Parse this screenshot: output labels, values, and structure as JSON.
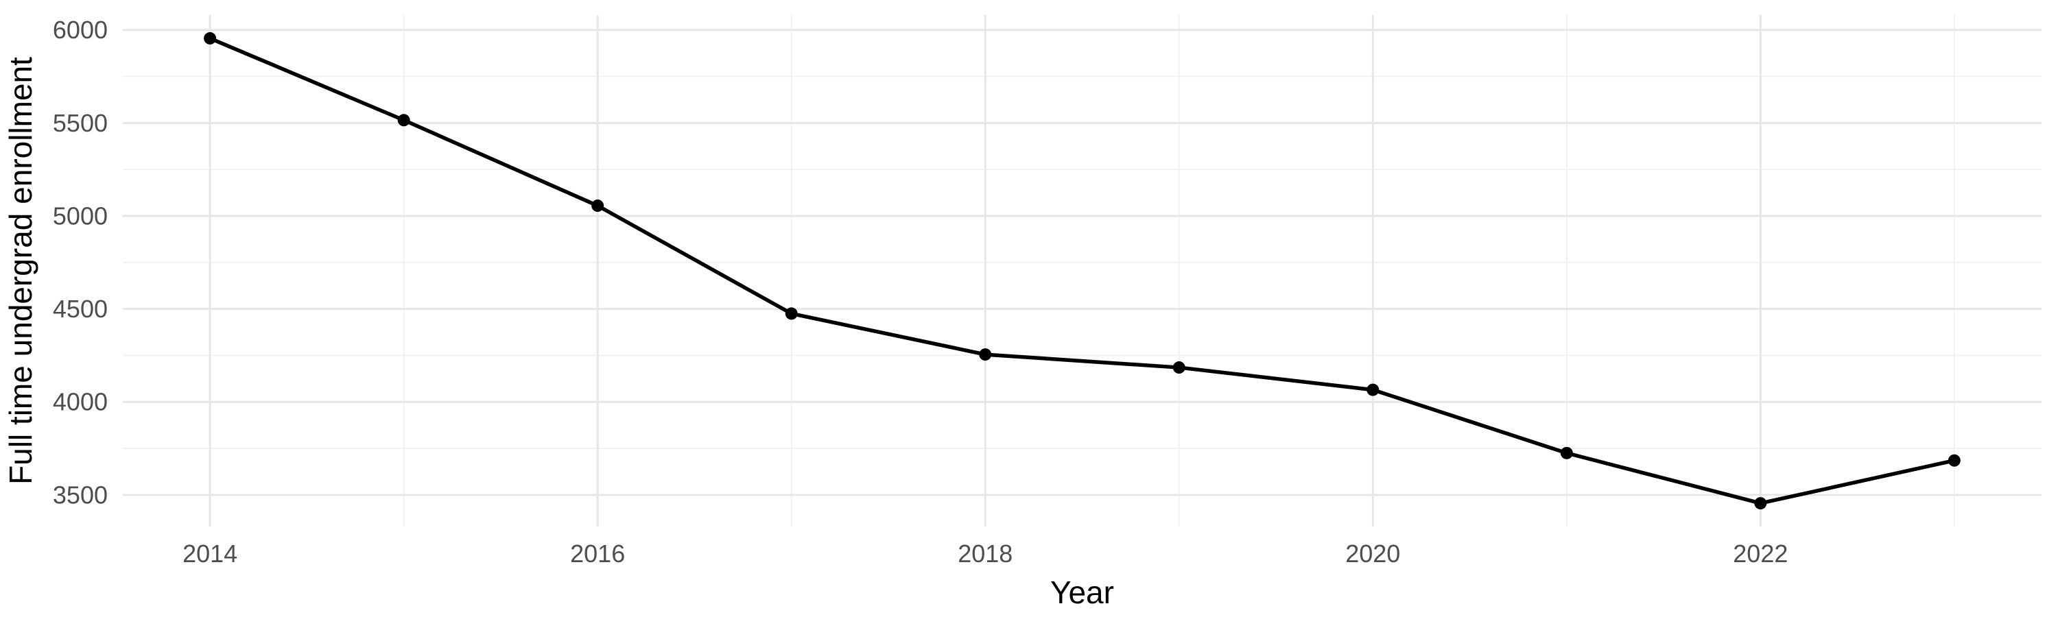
{
  "figure": {
    "background": "#FFFFFF"
  },
  "chart_data": {
    "type": "line",
    "title": "",
    "xlabel": "Year",
    "ylabel": "Full time undergrad enrollment",
    "x": [
      2014,
      2015,
      2016,
      2017,
      2018,
      2019,
      2020,
      2021,
      2022,
      2023
    ],
    "series": [
      {
        "name": "Full time undergrad enrollment",
        "values": [
          5955,
          5515,
          5055,
          4475,
          4255,
          4185,
          4065,
          3725,
          3455,
          3685
        ]
      }
    ],
    "x_major_ticks": [
      2014,
      2016,
      2018,
      2020,
      2022
    ],
    "x_minor_gridlines": [
      2015,
      2017,
      2019,
      2021,
      2023
    ],
    "y_major_ticks": [
      3500,
      4000,
      4500,
      5000,
      5500,
      6000
    ],
    "y_minor_gridlines": [
      3750,
      4250,
      4750,
      5250,
      5750
    ],
    "xlim": [
      2013.55,
      2023.45
    ],
    "ylim": [
      3330,
      6080
    ],
    "grid": true,
    "legend_position": "none",
    "colors": {
      "line": "#000000",
      "point": "#000000",
      "gridline_major": "#E6E6E6",
      "gridline_minor": "#F0F0F0",
      "tick_label": "#4D4D4D",
      "axis_title": "#000000",
      "background": "#FFFFFF"
    }
  }
}
